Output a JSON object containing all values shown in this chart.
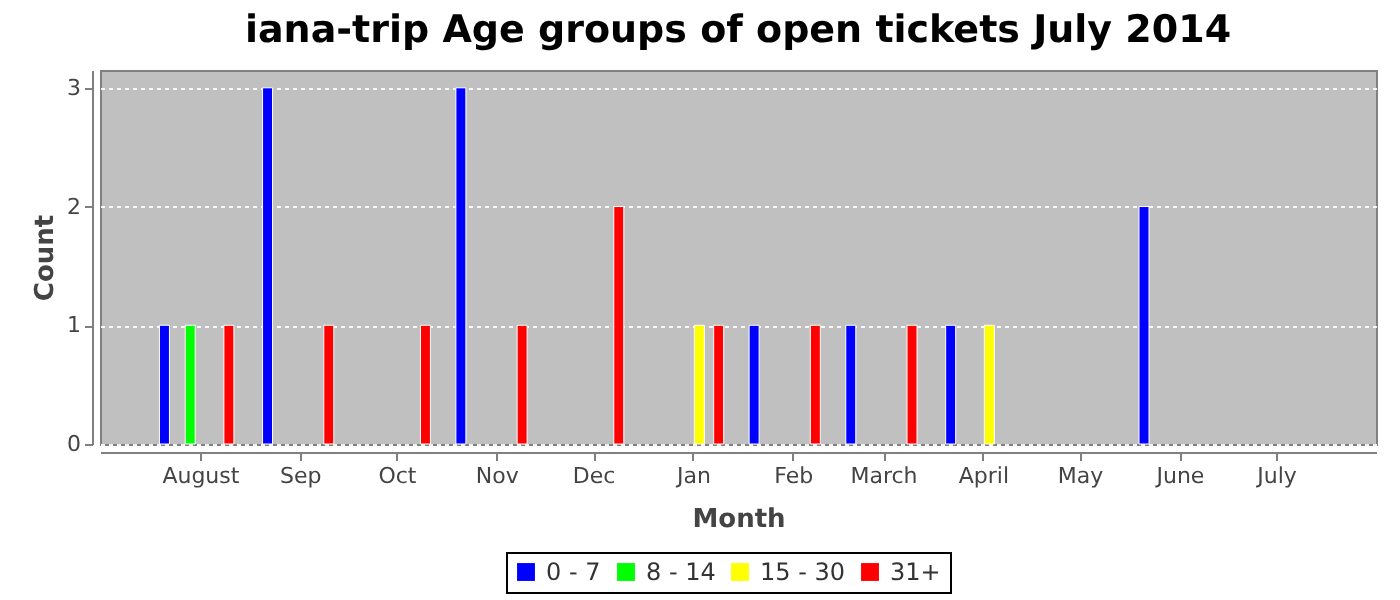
{
  "chart_data": {
    "type": "bar",
    "title": "iana-trip Age groups of open tickets July 2014",
    "xlabel": "Month",
    "ylabel": "Count",
    "xlim": [
      "2013-07-01",
      "2014-08-01"
    ],
    "xticks": [
      {
        "value": "2013-08-01",
        "label": "August"
      },
      {
        "value": "2013-09-01",
        "label": "Sep"
      },
      {
        "value": "2013-10-01",
        "label": "Oct"
      },
      {
        "value": "2013-11-01",
        "label": "Nov"
      },
      {
        "value": "2013-12-01",
        "label": "Dec"
      },
      {
        "value": "2014-01-01",
        "label": "Jan"
      },
      {
        "value": "2014-02-01",
        "label": "Feb"
      },
      {
        "value": "2014-03-01",
        "label": "March"
      },
      {
        "value": "2014-04-01",
        "label": "April"
      },
      {
        "value": "2014-05-01",
        "label": "May"
      },
      {
        "value": "2014-06-01",
        "label": "June"
      },
      {
        "value": "2014-07-01",
        "label": "July"
      }
    ],
    "ylim": [
      0,
      3.15
    ],
    "yticks": [
      0,
      1,
      2,
      3
    ],
    "grid": "y",
    "legend": "bottom",
    "series": [
      {
        "name": "0 - 7",
        "color": "#0000ff",
        "x": [
          "2013-07-21",
          "2013-08-22",
          "2013-10-21",
          "2014-01-20",
          "2014-02-19",
          "2014-03-22",
          "2014-05-21"
        ],
        "values": [
          1,
          3,
          3,
          1,
          1,
          1,
          2
        ]
      },
      {
        "name": "8 - 14",
        "color": "#00ff00",
        "x": [
          "2013-07-29"
        ],
        "values": [
          1
        ]
      },
      {
        "name": "15 - 30",
        "color": "#ffff00",
        "x": [
          "2014-01-03",
          "2014-04-03"
        ],
        "values": [
          1,
          1
        ]
      },
      {
        "name": "31+",
        "color": "#ff0000",
        "x": [
          "2013-08-10",
          "2013-09-10",
          "2013-10-10",
          "2013-11-09",
          "2013-12-09",
          "2014-01-09",
          "2014-02-08",
          "2014-03-10"
        ],
        "values": [
          1,
          1,
          1,
          1,
          2,
          1,
          1,
          1
        ]
      }
    ]
  }
}
